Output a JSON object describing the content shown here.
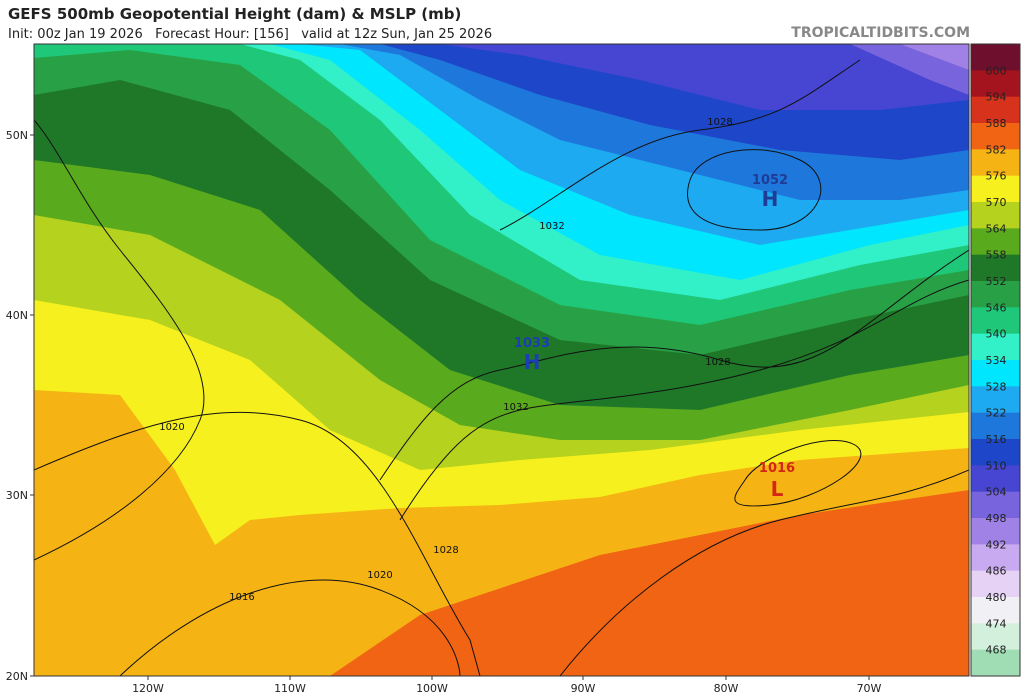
{
  "header": {
    "title": "GEFS 500mb Geopotential Height (dam) & MSLP (mb)",
    "subtitle": "Init: 00z Jan 19 2026   Forecast Hour: [156]   valid at 12z Sun, Jan 25 2026",
    "site": "TROPICALTIDBITS.COM"
  },
  "colorbar": {
    "labels": [
      "600",
      "594",
      "588",
      "582",
      "576",
      "570",
      "564",
      "558",
      "552",
      "546",
      "540",
      "534",
      "528",
      "522",
      "516",
      "510",
      "504",
      "498",
      "492",
      "486",
      "480",
      "474",
      "468"
    ],
    "colors": [
      "#6e0f2d",
      "#a3141e",
      "#d7321c",
      "#f06414",
      "#f5b414",
      "#f5f01e",
      "#b4d21e",
      "#5aaa1e",
      "#1e7828",
      "#28a046",
      "#1ec878",
      "#32f0c8",
      "#00e6ff",
      "#1eaaf0",
      "#1e78dc",
      "#1e46c8",
      "#4646d2",
      "#7864dc",
      "#a082e6",
      "#c8aaf0",
      "#e6d2f5",
      "#f0f0f5",
      "#d2f0dc",
      "#a0dcb4"
    ]
  },
  "map": {
    "lat_labels": [
      "50N",
      "40N",
      "30N",
      "20N"
    ],
    "lon_labels": [
      "120W",
      "110W",
      "100W",
      "90W",
      "80W",
      "70W"
    ],
    "pressure_centers": [
      {
        "value": "1033",
        "letter": "H"
      },
      {
        "value": "1052",
        "letter": "H"
      },
      {
        "value": "1016",
        "letter": "L"
      }
    ],
    "isobar_labels": [
      "1028",
      "1032",
      "1028",
      "1032",
      "1020",
      "1028",
      "1020",
      "1016"
    ]
  }
}
